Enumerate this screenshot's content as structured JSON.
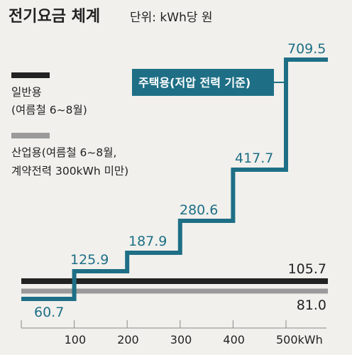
{
  "header": {
    "title": "전기요금 체계",
    "unit": "단위: kWh당 원"
  },
  "legend": {
    "general": {
      "line1": "일반용",
      "line2": "(여름철 6~8월)",
      "color": "#222222"
    },
    "industrial": {
      "line1": "산업용(여름철 6~8월,",
      "line2": "계약전력 300kWh 미만)",
      "color": "#9a9a9a"
    },
    "residential": {
      "label": "주택용(저압 전력 기준)",
      "color": "#1e6f86"
    }
  },
  "chart_data": {
    "type": "line",
    "x_ticks": [
      "100",
      "200",
      "300",
      "400",
      "500kWh"
    ],
    "series": [
      {
        "name": "주택용(저압 전력 기준)",
        "step": true,
        "x_ranges": [
          [
            0,
            100
          ],
          [
            100,
            200
          ],
          [
            200,
            300
          ],
          [
            300,
            400
          ],
          [
            400,
            500
          ],
          [
            500,
            580
          ]
        ],
        "values": [
          60.7,
          125.9,
          187.9,
          280.6,
          417.7,
          709.5
        ],
        "labels": [
          "60.7",
          "125.9",
          "187.9",
          "280.6",
          "417.7",
          "709.5"
        ]
      },
      {
        "name": "일반용",
        "flat": true,
        "value": 105.7,
        "label": "105.7"
      },
      {
        "name": "산업용",
        "flat": true,
        "value": 81.0,
        "label": "81.0"
      }
    ]
  }
}
